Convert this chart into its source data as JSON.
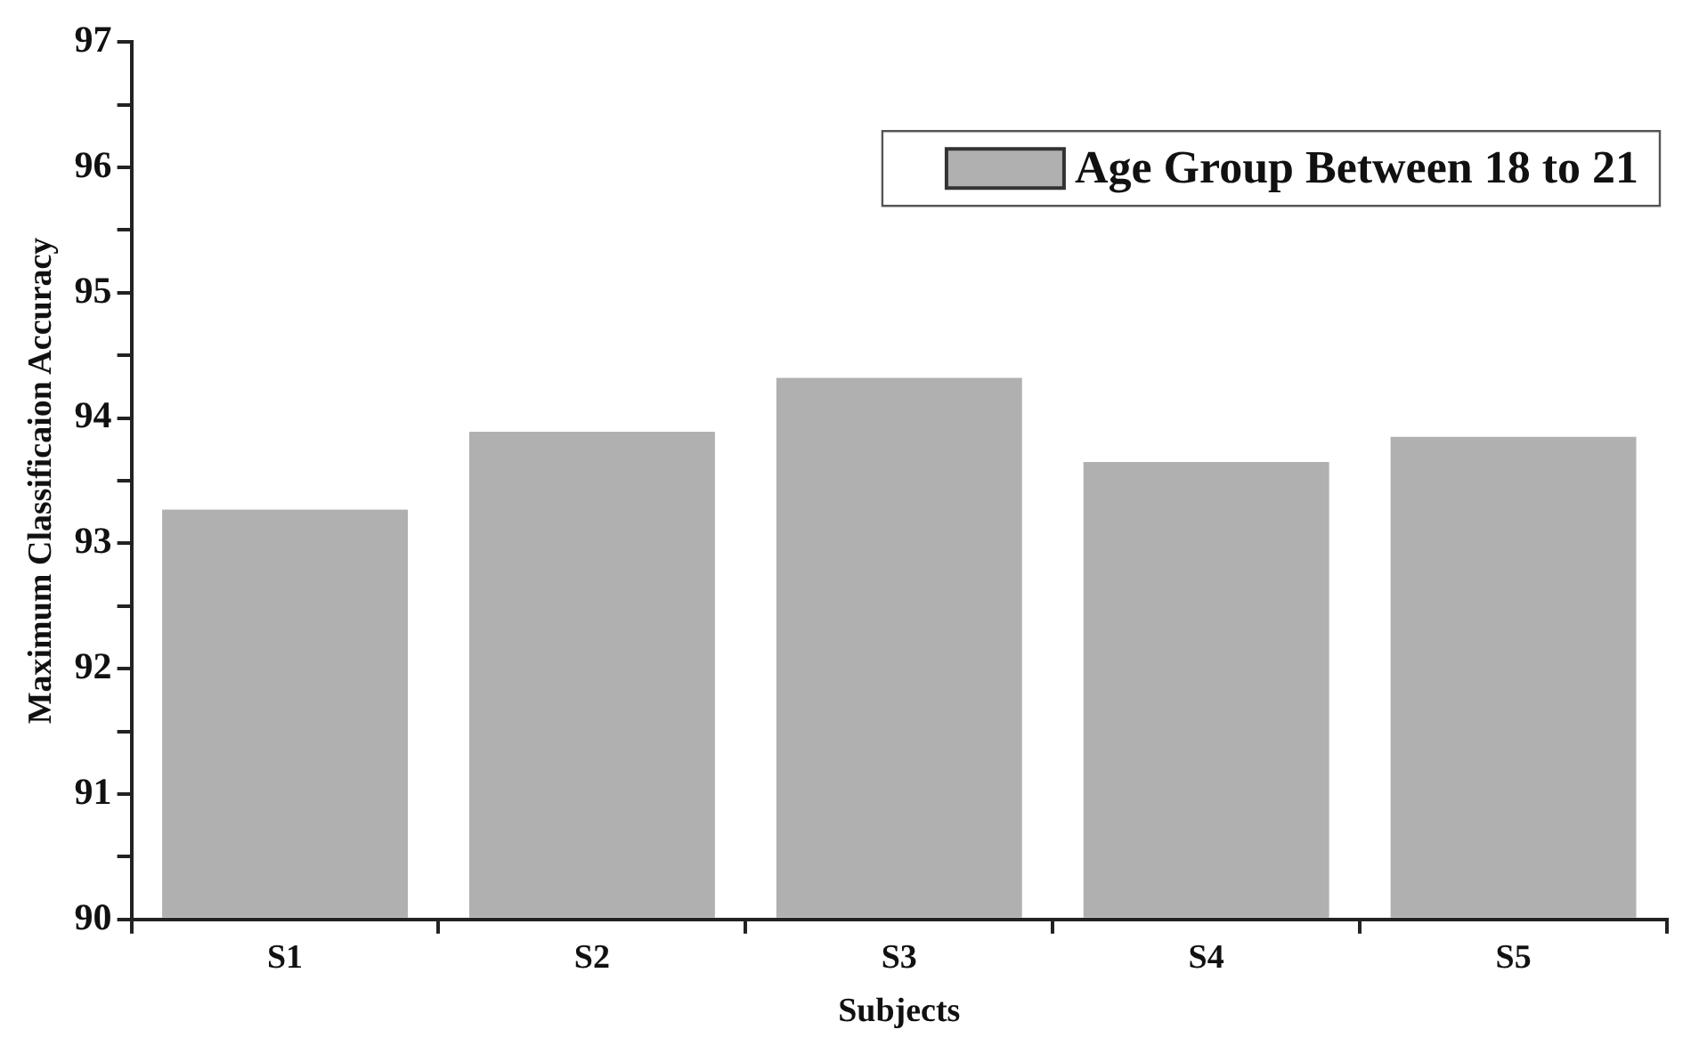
{
  "chart_data": {
    "type": "bar",
    "xlabel": "Subjects",
    "ylabel": "Maximum Classificaion Accuracy",
    "categories": [
      "S1",
      "S2",
      "S3",
      "S4",
      "S5"
    ],
    "series": [
      {
        "name": "Age Group Between 18 to 21",
        "color": "#b0b0b0",
        "values": [
          93.27,
          93.89,
          94.32,
          93.65,
          93.85
        ]
      }
    ],
    "ylim": [
      90,
      97
    ],
    "yticks": [
      90,
      {
        "value": 90.5,
        "label": null
      },
      91,
      {
        "value": 91.5,
        "label": null
      },
      92,
      {
        "value": 92.5,
        "label": null
      },
      93,
      {
        "value": 93.5,
        "label": null
      },
      94,
      {
        "value": 94.5,
        "label": null
      },
      95,
      {
        "value": 95.5,
        "label": null
      },
      96,
      {
        "value": 96.5,
        "label": null
      },
      97
    ],
    "grid": false,
    "legend": "top right"
  }
}
